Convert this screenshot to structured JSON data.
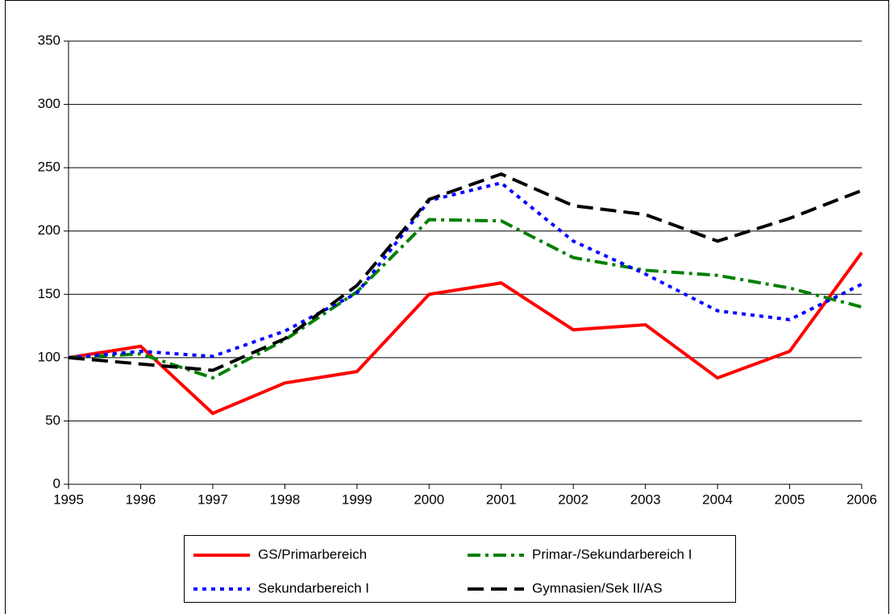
{
  "chart_data": {
    "type": "line",
    "x": [
      1995,
      1996,
      1997,
      1998,
      1999,
      2000,
      2001,
      2002,
      2003,
      2004,
      2005,
      2006
    ],
    "xlim": [
      1995,
      2006
    ],
    "xticks": [
      1995,
      1996,
      1997,
      1998,
      1999,
      2000,
      2001,
      2002,
      2003,
      2004,
      2005,
      2006
    ],
    "ylim": [
      0,
      350
    ],
    "yticks": [
      0,
      50,
      100,
      150,
      200,
      250,
      300,
      350
    ],
    "grid": true,
    "legend": "bottom",
    "series": [
      {
        "name": "GS/Primarbereich",
        "color": "#ff0000",
        "dash": "solid",
        "values": [
          100,
          109,
          56,
          80,
          89,
          150,
          159,
          122,
          126,
          84,
          105,
          183
        ]
      },
      {
        "name": "Primar-/Sekundarbereich I",
        "color": "#008000",
        "dash": "dash-dot",
        "values": [
          100,
          103,
          84,
          114,
          152,
          209,
          208,
          179,
          169,
          165,
          155,
          140
        ]
      },
      {
        "name": "Sekundarbereich I",
        "color": "#0000ff",
        "dash": "dot",
        "values": [
          100,
          105,
          101,
          121,
          151,
          224,
          238,
          192,
          166,
          137,
          130,
          158
        ]
      },
      {
        "name": "Gymnasien/Sek II/AS",
        "color": "#000000",
        "dash": "long-dash",
        "values": [
          100,
          95,
          90,
          115,
          157,
          225,
          245,
          220,
          213,
          192,
          210,
          232
        ]
      }
    ]
  }
}
